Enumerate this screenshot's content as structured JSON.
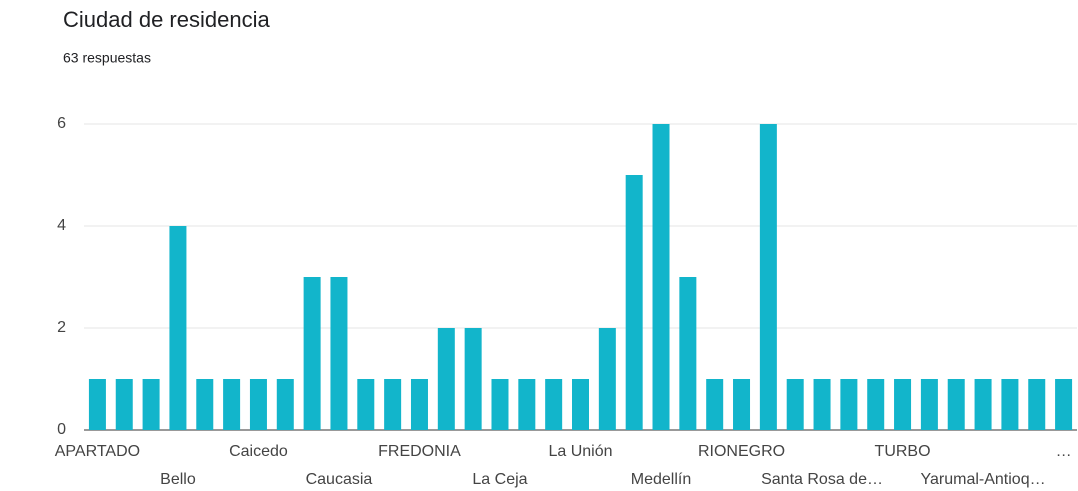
{
  "chart_data": {
    "type": "bar",
    "title": "Ciudad de residencia",
    "subtitle": "63 respuestas",
    "categories": [
      "APARTADO",
      null,
      null,
      "Bello",
      null,
      null,
      "Caicedo",
      null,
      null,
      "Caucasia",
      null,
      null,
      "FREDONIA",
      null,
      null,
      "La Ceja",
      null,
      null,
      "La Unión",
      null,
      null,
      "Medellín",
      null,
      null,
      "RIONEGRO",
      null,
      null,
      "Santa Rosa de…",
      null,
      null,
      "TURBO",
      null,
      null,
      "Yarumal-Antioq…",
      null,
      null,
      "…"
    ],
    "values": [
      1,
      1,
      1,
      4,
      1,
      1,
      1,
      1,
      3,
      3,
      1,
      1,
      1,
      2,
      2,
      1,
      1,
      1,
      1,
      2,
      5,
      6,
      3,
      1,
      1,
      6,
      1,
      1,
      1,
      1,
      1,
      1,
      1,
      1,
      1,
      1,
      1
    ],
    "color": "#12b5cb",
    "ylim": [
      0,
      6
    ],
    "yticks": [
      0,
      2,
      4,
      6
    ],
    "grid": true
  }
}
